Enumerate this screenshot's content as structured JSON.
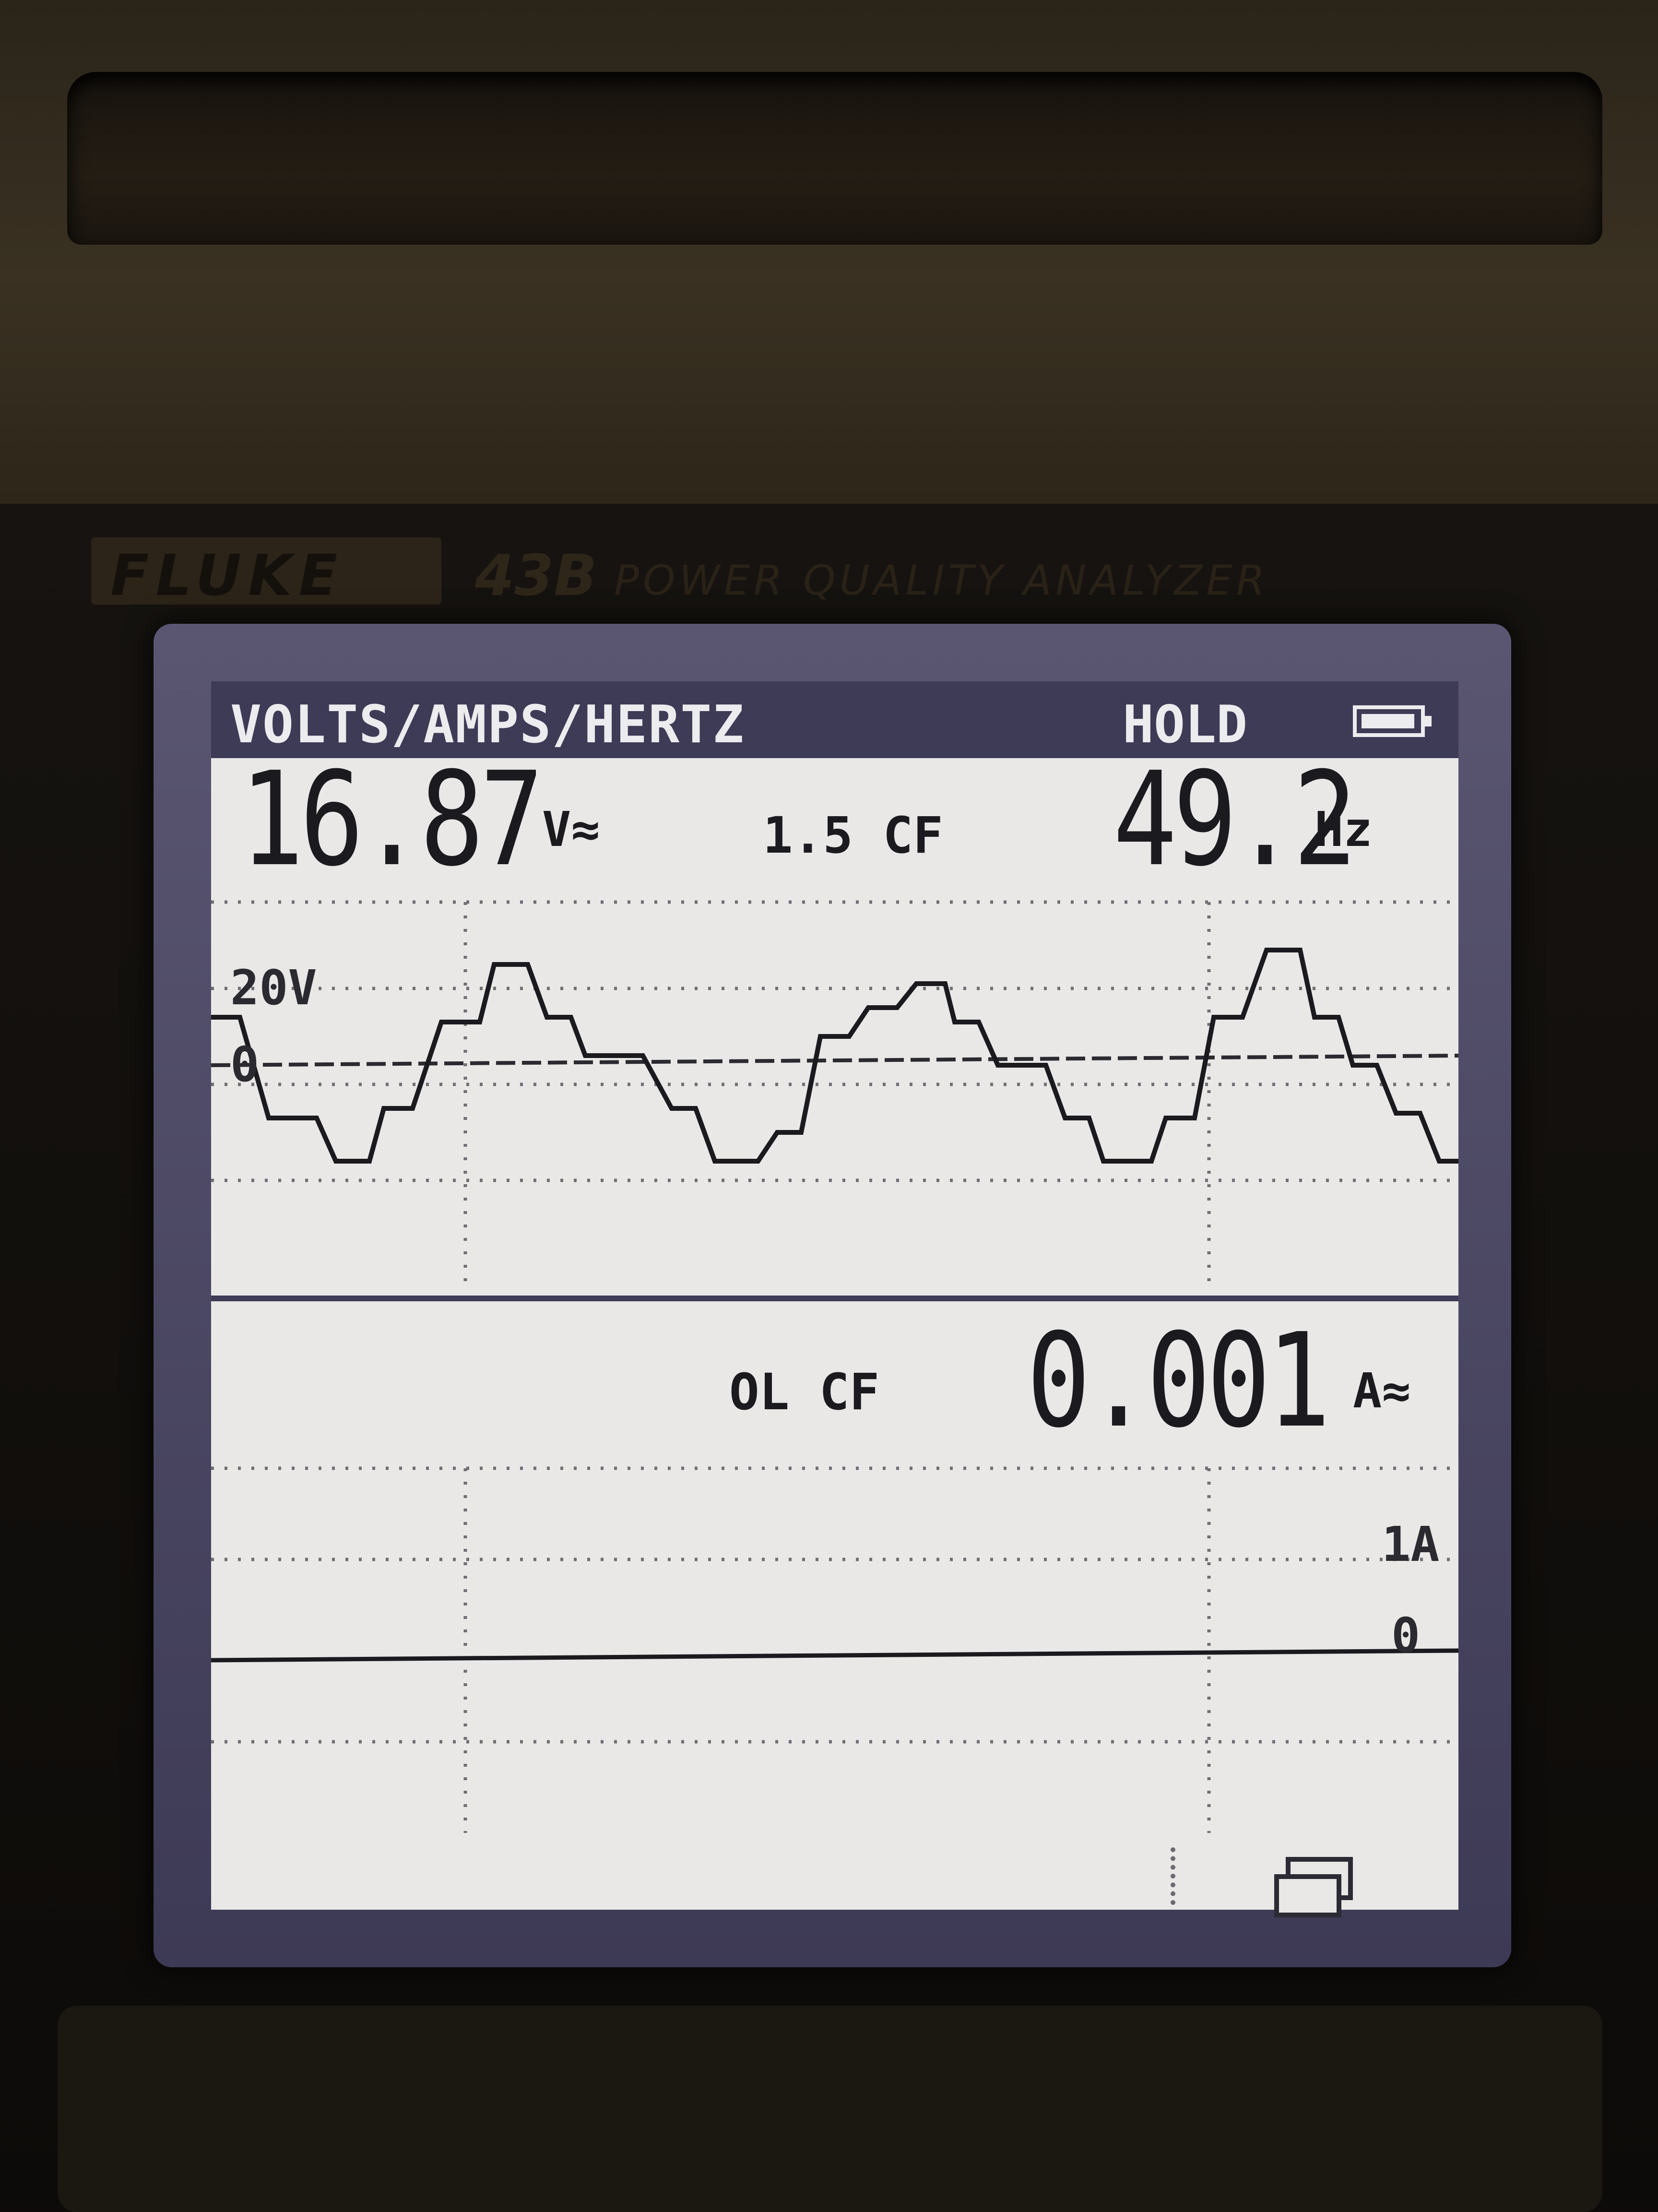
{
  "device": {
    "brand": "FLUKE",
    "model": "43B",
    "subtitle": "POWER QUALITY ANALYZER"
  },
  "header": {
    "title": "VOLTS/AMPS/HERTZ",
    "status": "HOLD",
    "battery_icon": "battery-icon"
  },
  "voltage": {
    "value": "16.87",
    "unit": "V≈",
    "crest_factor": "1.5 CF",
    "frequency": "49.2",
    "frequency_unit": "Hz"
  },
  "voltage_trace": {
    "scale_label": "20V",
    "zero_label": "0"
  },
  "current": {
    "crest_factor": "OL CF",
    "value": "0.001",
    "unit": "A≈"
  },
  "current_trace": {
    "scale_label": "1A",
    "zero_label": "0"
  },
  "colors": {
    "lcd_background": "#e9e8e6",
    "lcd_frame": "#3e3b56",
    "trace": "#1b1a1f"
  },
  "icons": {
    "softkey": "display-mode-icon"
  }
}
